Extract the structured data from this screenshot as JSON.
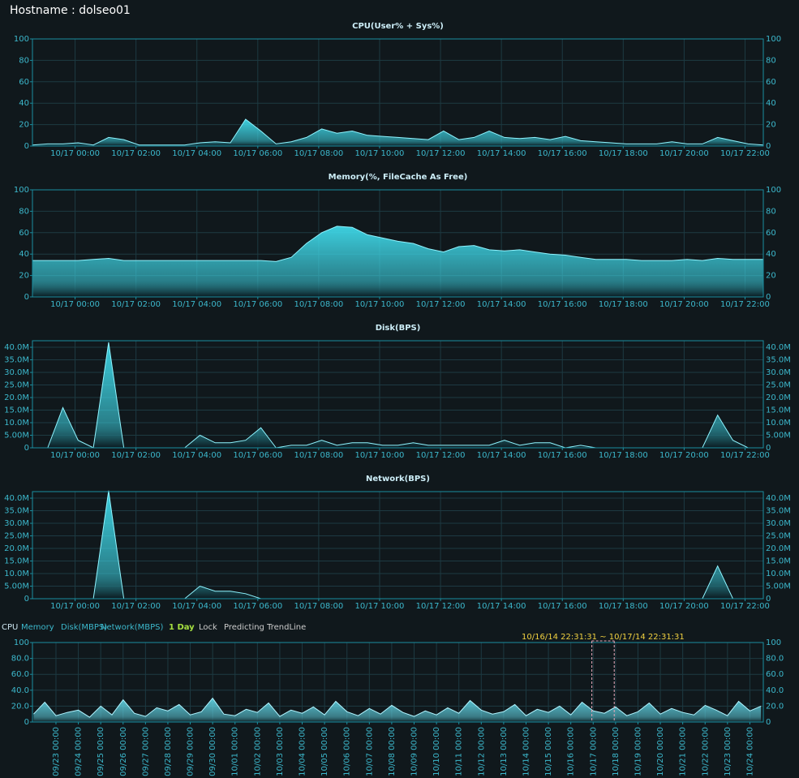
{
  "header": {
    "hostname": "Hostname : dolseo01"
  },
  "menu": {
    "items": [
      "CPU",
      "Memory",
      "Disk(MBPS)",
      "Network(MBPS)",
      "1 Day",
      "Lock",
      "Predicting TrendLine"
    ]
  },
  "chart_data": [
    {
      "type": "area",
      "title": "CPU(User% + Sys%)",
      "color": "#3fd8e8",
      "line_color": "#8ff4ff",
      "grid": true,
      "mirror_y_axis": true,
      "x": [
        -1.4,
        -0.9,
        -0.4,
        0.1,
        0.6,
        1.1,
        1.6,
        2.1,
        2.6,
        3.1,
        3.6,
        4.1,
        4.6,
        5.1,
        5.6,
        6.1,
        6.6,
        7.1,
        7.6,
        8.1,
        8.6,
        9.1,
        9.6,
        10.1,
        10.6,
        11.1,
        11.6,
        12.1,
        12.6,
        13.1,
        13.6,
        14.1,
        14.6,
        15.1,
        15.6,
        16.1,
        16.6,
        17.1,
        17.6,
        18.1,
        18.6,
        19.1,
        19.6,
        20.1,
        20.6,
        21.1,
        21.6,
        22.1,
        22.6
      ],
      "values": [
        1,
        2,
        2,
        3,
        1,
        8,
        6,
        1,
        1,
        1,
        1,
        3,
        4,
        3,
        25,
        14,
        2,
        4,
        8,
        16,
        12,
        14,
        10,
        9,
        8,
        7,
        6,
        14,
        6,
        8,
        14,
        8,
        7,
        8,
        6,
        9,
        5,
        4,
        3,
        2,
        2,
        2,
        4,
        2,
        2,
        8,
        5,
        2,
        1
      ],
      "xlim": [
        -1.4,
        22.6
      ],
      "xticks": [
        {
          "value": 0,
          "label": "10/17 00:00"
        },
        {
          "value": 2,
          "label": "10/17 02:00"
        },
        {
          "value": 4,
          "label": "10/17 04:00"
        },
        {
          "value": 6,
          "label": "10/17 06:00"
        },
        {
          "value": 8,
          "label": "10/17 08:00"
        },
        {
          "value": 10,
          "label": "10/17 10:00"
        },
        {
          "value": 12,
          "label": "10/17 12:00"
        },
        {
          "value": 14,
          "label": "10/17 14:00"
        },
        {
          "value": 16,
          "label": "10/17 16:00"
        },
        {
          "value": 18,
          "label": "10/17 18:00"
        },
        {
          "value": 20,
          "label": "10/17 20:00"
        },
        {
          "value": 22,
          "label": "10/17 22:00"
        }
      ],
      "ylim": [
        0,
        100
      ],
      "yticks": [
        0,
        20,
        40,
        60,
        80,
        100
      ]
    },
    {
      "type": "area",
      "title": "Memory(%, FileCache As Free)",
      "color": "#3fd8e8",
      "line_color": "#8ff4ff",
      "grid": true,
      "mirror_y_axis": true,
      "x": [
        -1.4,
        -0.9,
        -0.4,
        0.1,
        0.6,
        1.1,
        1.6,
        2.1,
        2.6,
        3.1,
        3.6,
        4.1,
        4.6,
        5.1,
        5.6,
        6.1,
        6.6,
        7.1,
        7.6,
        8.1,
        8.6,
        9.1,
        9.6,
        10.1,
        10.6,
        11.1,
        11.6,
        12.1,
        12.6,
        13.1,
        13.6,
        14.1,
        14.6,
        15.1,
        15.6,
        16.1,
        16.6,
        17.1,
        17.6,
        18.1,
        18.6,
        19.1,
        19.6,
        20.1,
        20.6,
        21.1,
        21.6,
        22.1,
        22.6
      ],
      "values": [
        34,
        34,
        34,
        34,
        35,
        36,
        34,
        34,
        34,
        34,
        34,
        34,
        34,
        34,
        34,
        34,
        33,
        37,
        50,
        60,
        66,
        65,
        58,
        55,
        52,
        50,
        45,
        42,
        47,
        48,
        44,
        43,
        44,
        42,
        40,
        39,
        37,
        35,
        35,
        35,
        34,
        34,
        34,
        35,
        34,
        36,
        35,
        35,
        35
      ],
      "xlim": [
        -1.4,
        22.6
      ],
      "xticks": [
        {
          "value": 0,
          "label": "10/17 00:00"
        },
        {
          "value": 2,
          "label": "10/17 02:00"
        },
        {
          "value": 4,
          "label": "10/17 04:00"
        },
        {
          "value": 6,
          "label": "10/17 06:00"
        },
        {
          "value": 8,
          "label": "10/17 08:00"
        },
        {
          "value": 10,
          "label": "10/17 10:00"
        },
        {
          "value": 12,
          "label": "10/17 12:00"
        },
        {
          "value": 14,
          "label": "10/17 14:00"
        },
        {
          "value": 16,
          "label": "10/17 16:00"
        },
        {
          "value": 18,
          "label": "10/17 18:00"
        },
        {
          "value": 20,
          "label": "10/17 20:00"
        },
        {
          "value": 22,
          "label": "10/17 22:00"
        }
      ],
      "ylim": [
        0,
        100
      ],
      "yticks": [
        0,
        20,
        40,
        60,
        80,
        100
      ]
    },
    {
      "type": "area",
      "title": "Disk(BPS)",
      "color": "#3fd8e8",
      "line_color": "#8ff4ff",
      "grid": true,
      "mirror_y_axis": true,
      "x": [
        -1.4,
        -0.9,
        -0.4,
        0.1,
        0.6,
        1.1,
        1.6,
        2.1,
        2.6,
        3.1,
        3.6,
        4.1,
        4.6,
        5.1,
        5.6,
        6.1,
        6.6,
        7.1,
        7.6,
        8.1,
        8.6,
        9.1,
        9.6,
        10.1,
        10.6,
        11.1,
        11.6,
        12.1,
        12.6,
        13.1,
        13.6,
        14.1,
        14.6,
        15.1,
        15.6,
        16.1,
        16.6,
        17.1,
        17.6,
        18.1,
        18.6,
        19.1,
        19.6,
        20.1,
        20.6,
        21.1,
        21.6,
        22.1,
        22.6
      ],
      "values": [
        0,
        0,
        16,
        3,
        0,
        42,
        0,
        0,
        0,
        0,
        0,
        5,
        2,
        2,
        3,
        8,
        0,
        1,
        1,
        3,
        1,
        2,
        2,
        1,
        1,
        2,
        1,
        1,
        1,
        1,
        1,
        3,
        1,
        2,
        2,
        0,
        1,
        0,
        0,
        0,
        0,
        0,
        0,
        0,
        0,
        13,
        3,
        0,
        0
      ],
      "xlim": [
        -1.4,
        22.6
      ],
      "xticks": [
        {
          "value": 0,
          "label": "10/17 00:00"
        },
        {
          "value": 2,
          "label": "10/17 02:00"
        },
        {
          "value": 4,
          "label": "10/17 04:00"
        },
        {
          "value": 6,
          "label": "10/17 06:00"
        },
        {
          "value": 8,
          "label": "10/17 08:00"
        },
        {
          "value": 10,
          "label": "10/17 10:00"
        },
        {
          "value": 12,
          "label": "10/17 12:00"
        },
        {
          "value": 14,
          "label": "10/17 14:00"
        },
        {
          "value": 16,
          "label": "10/17 16:00"
        },
        {
          "value": 18,
          "label": "10/17 18:00"
        },
        {
          "value": 20,
          "label": "10/17 20:00"
        },
        {
          "value": 22,
          "label": "10/17 22:00"
        }
      ],
      "ylim": [
        0,
        42.6
      ],
      "yticks": [
        0,
        {
          "value": 5,
          "label": "5.00M"
        },
        {
          "value": 10,
          "label": "10.0M"
        },
        {
          "value": 15,
          "label": "15.0M"
        },
        {
          "value": 20,
          "label": "20.0M"
        },
        {
          "value": 25,
          "label": "25.0M"
        },
        {
          "value": 30,
          "label": "30.0M"
        },
        {
          "value": 35,
          "label": "35.0M"
        },
        {
          "value": 40,
          "label": "40.0M"
        }
      ]
    },
    {
      "type": "area",
      "title": "Network(BPS)",
      "color": "#3fd8e8",
      "line_color": "#8ff4ff",
      "grid": true,
      "mirror_y_axis": true,
      "x": [
        -1.4,
        -0.9,
        -0.4,
        0.1,
        0.6,
        1.1,
        1.6,
        2.1,
        2.6,
        3.1,
        3.6,
        4.1,
        4.6,
        5.1,
        5.6,
        6.1,
        6.6,
        7.1,
        7.6,
        8.1,
        8.6,
        9.1,
        9.6,
        10.1,
        10.6,
        11.1,
        11.6,
        12.1,
        12.6,
        13.1,
        13.6,
        14.1,
        14.6,
        15.1,
        15.6,
        16.1,
        16.6,
        17.1,
        17.6,
        18.1,
        18.6,
        19.1,
        19.6,
        20.1,
        20.6,
        21.1,
        21.6,
        22.1,
        22.6
      ],
      "values": [
        0,
        0,
        0,
        0,
        0,
        43,
        0,
        0,
        0,
        0,
        0,
        5,
        3,
        3,
        2,
        0,
        0,
        0,
        0,
        0,
        0,
        0,
        0,
        0,
        0,
        0,
        0,
        0,
        0,
        0,
        0,
        0,
        0,
        0,
        0,
        0,
        0,
        0,
        0,
        0,
        0,
        0,
        0,
        0,
        0,
        13,
        0,
        0,
        0
      ],
      "xlim": [
        -1.4,
        22.6
      ],
      "xticks": [
        {
          "value": 0,
          "label": "10/17 00:00"
        },
        {
          "value": 2,
          "label": "10/17 02:00"
        },
        {
          "value": 4,
          "label": "10/17 04:00"
        },
        {
          "value": 6,
          "label": "10/17 06:00"
        },
        {
          "value": 8,
          "label": "10/17 08:00"
        },
        {
          "value": 10,
          "label": "10/17 10:00"
        },
        {
          "value": 12,
          "label": "10/17 12:00"
        },
        {
          "value": 14,
          "label": "10/17 14:00"
        },
        {
          "value": 16,
          "label": "10/17 16:00"
        },
        {
          "value": 18,
          "label": "10/17 18:00"
        },
        {
          "value": 20,
          "label": "10/17 20:00"
        },
        {
          "value": 22,
          "label": "10/17 22:00"
        }
      ],
      "ylim": [
        0,
        42.6
      ],
      "yticks": [
        0,
        {
          "value": 5,
          "label": "5.00M"
        },
        {
          "value": 10,
          "label": "10.0M"
        },
        {
          "value": 15,
          "label": "15.0M"
        },
        {
          "value": 20,
          "label": "20.0M"
        },
        {
          "value": 25,
          "label": "25.0M"
        },
        {
          "value": 30,
          "label": "30.0M"
        },
        {
          "value": 35,
          "label": "35.0M"
        },
        {
          "value": 40,
          "label": "40.0M"
        }
      ]
    },
    {
      "type": "area",
      "color": "#5fd0e0",
      "line_color": "#b0f4ff",
      "grid": true,
      "mirror_y_axis": true,
      "x_tick_rotation": -90,
      "x": [
        -1,
        -0.5,
        0,
        0.5,
        1,
        1.5,
        2,
        2.5,
        3,
        3.5,
        4,
        4.5,
        5,
        5.5,
        6,
        6.5,
        7,
        7.5,
        8,
        8.5,
        9,
        9.5,
        10,
        10.5,
        11,
        11.5,
        12,
        12.5,
        13,
        13.5,
        14,
        14.5,
        15,
        15.5,
        16,
        16.5,
        17,
        17.5,
        18,
        18.5,
        19,
        19.5,
        20,
        20.5,
        21,
        21.5,
        22,
        22.5,
        23,
        23.5,
        24,
        24.5,
        25,
        25.5,
        26,
        26.5,
        27,
        27.5,
        28,
        28.5,
        29,
        29.5,
        30,
        30.5,
        31,
        31.5
      ],
      "values": [
        10,
        25,
        8,
        12,
        15,
        6,
        20,
        9,
        28,
        11,
        7,
        18,
        14,
        22,
        9,
        13,
        30,
        10,
        8,
        16,
        12,
        24,
        7,
        15,
        11,
        19,
        9,
        26,
        13,
        8,
        17,
        10,
        21,
        12,
        7,
        14,
        9,
        18,
        11,
        27,
        15,
        10,
        13,
        22,
        8,
        16,
        12,
        20,
        9,
        25,
        14,
        11,
        19,
        8,
        13,
        24,
        10,
        17,
        12,
        9,
        21,
        15,
        8,
        26,
        14,
        20
      ],
      "xlim": [
        -1.05,
        31.6
      ],
      "xticks": [
        {
          "value": 0,
          "label": "09/23 00:00"
        },
        {
          "value": 1,
          "label": "09/24 00:00"
        },
        {
          "value": 2,
          "label": "09/25 00:00"
        },
        {
          "value": 3,
          "label": "09/26 00:00"
        },
        {
          "value": 4,
          "label": "09/27 00:00"
        },
        {
          "value": 5,
          "label": "09/28 00:00"
        },
        {
          "value": 6,
          "label": "09/29 00:00"
        },
        {
          "value": 7,
          "label": "09/30 00:00"
        },
        {
          "value": 8,
          "label": "10/01 00:00"
        },
        {
          "value": 9,
          "label": "10/02 00:00"
        },
        {
          "value": 10,
          "label": "10/03 00:00"
        },
        {
          "value": 11,
          "label": "10/04 00:00"
        },
        {
          "value": 12,
          "label": "10/05 00:00"
        },
        {
          "value": 13,
          "label": "10/06 00:00"
        },
        {
          "value": 14,
          "label": "10/07 00:00"
        },
        {
          "value": 15,
          "label": "10/08 00:00"
        },
        {
          "value": 16,
          "label": "10/09 00:00"
        },
        {
          "value": 17,
          "label": "10/10 00:00"
        },
        {
          "value": 18,
          "label": "10/11 00:00"
        },
        {
          "value": 19,
          "label": "10/12 00:00"
        },
        {
          "value": 20,
          "label": "10/13 00:00"
        },
        {
          "value": 21,
          "label": "10/14 00:00"
        },
        {
          "value": 22,
          "label": "10/15 00:00"
        },
        {
          "value": 23,
          "label": "10/16 00:00"
        },
        {
          "value": 24,
          "label": "10/17 00:00"
        },
        {
          "value": 25,
          "label": "10/18 00:00"
        },
        {
          "value": 26,
          "label": "10/19 00:00"
        },
        {
          "value": 27,
          "label": "10/20 00:00"
        },
        {
          "value": 28,
          "label": "10/21 00:00"
        },
        {
          "value": 29,
          "label": "10/22 00:00"
        },
        {
          "value": 30,
          "label": "10/23 00:00"
        },
        {
          "value": 31,
          "label": "10/24 00:00"
        }
      ],
      "ylim": [
        0,
        100
      ],
      "yticks": [
        0,
        {
          "value": 20,
          "label": "20.0"
        },
        {
          "value": 40,
          "label": "40.0"
        },
        {
          "value": 60,
          "label": "60.0"
        },
        {
          "value": 80,
          "label": "80.0"
        },
        100
      ],
      "selection": {
        "label": "10/16/14 22:31:31 ~ 10/17/14 22:31:31",
        "range": [
          23.94,
          24.94
        ]
      }
    }
  ]
}
